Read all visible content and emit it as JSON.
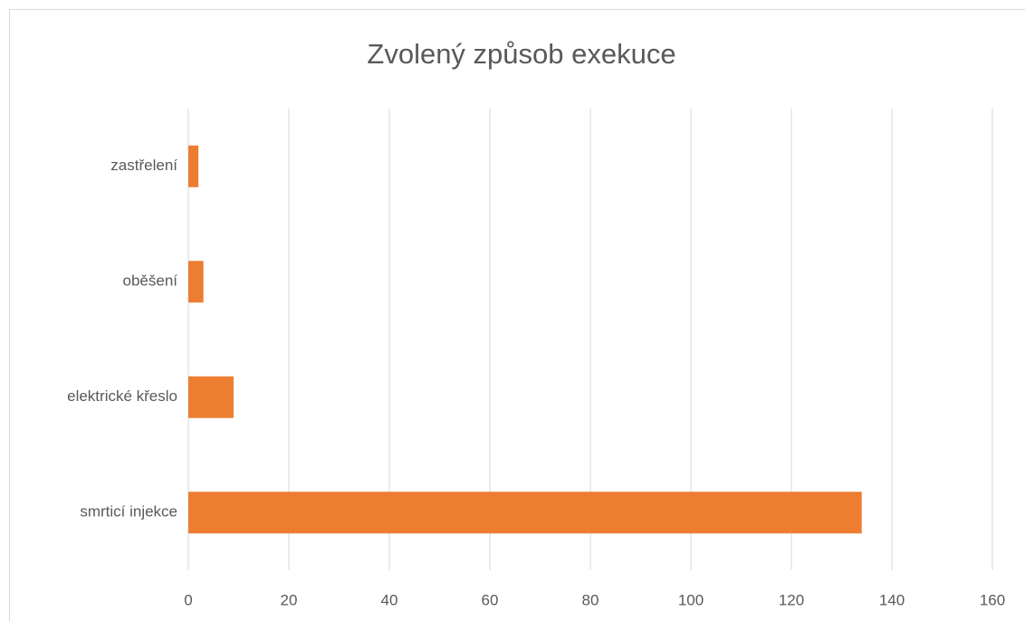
{
  "chart_data": {
    "type": "barh",
    "title": "Zvolený způsob exekuce",
    "categories": [
      "zastřelení",
      "oběšení",
      "elektrické křeslo",
      "smrticí injekce"
    ],
    "values": [
      2,
      3,
      9,
      134
    ],
    "color": "#ed7d31",
    "xlim": [
      0,
      160
    ],
    "xticks": [
      0,
      20,
      40,
      60,
      80,
      100,
      120,
      140,
      160
    ],
    "grid": true
  }
}
